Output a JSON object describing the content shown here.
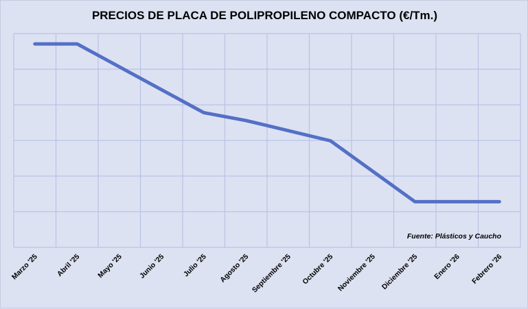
{
  "chart_data": {
    "type": "line",
    "title": "PRECIOS DE PLACA DE POLIPROPILENO COMPACTO (€/Tm.)",
    "categories": [
      "Marzo '25",
      "Abril '25",
      "Mayo '25",
      "Junio '25",
      "Julio '25",
      "Agosto '25",
      "Septiembre '25",
      "Octubre '25",
      "Noviembre '25",
      "Diciembre '25",
      "Enero '26",
      "Febrero '26"
    ],
    "series": [
      {
        "values": [
          5.71,
          5.71,
          null,
          null,
          3.78,
          3.56,
          null,
          2.99,
          null,
          1.28,
          null,
          1.28
        ]
      }
    ],
    "ylim": [
      0,
      6
    ],
    "y_tick_labels_shown": false,
    "grid": true,
    "line_color": "#5470c6",
    "source": "Fuente: Plásticos y Caucho"
  }
}
